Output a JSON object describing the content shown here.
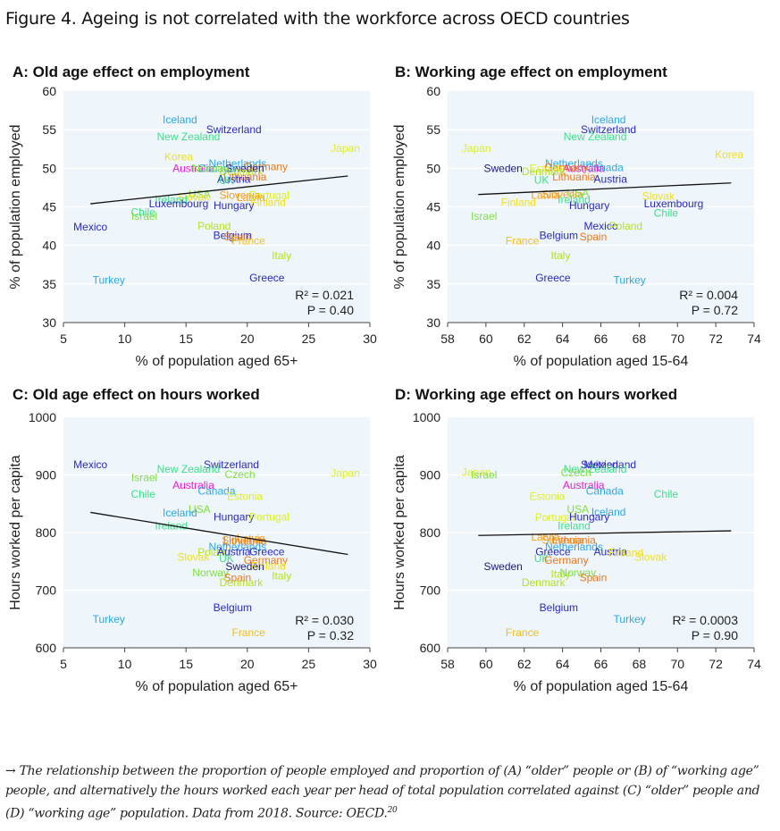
{
  "figure": {
    "title": "Figure 4. Ageing is not correlated with the workforce across OECD countries",
    "caption_arrow": "→",
    "caption": "The relationship between the proportion of people employed and proportion of (A) “older” people or (B) of “working age” people, and alternatively the hours worked each year per head of total population correlated against (C) “older” people and (D) “working age” population. Data from 2018. Source: OECD.",
    "caption_ref": "20"
  },
  "chart_data": [
    {
      "id": "A",
      "type": "scatter",
      "title": "A: Old age effect on employment",
      "xlabel": "% of population aged 65+",
      "ylabel": "% of population employed",
      "xlim": [
        5,
        30
      ],
      "ylim": [
        30,
        60
      ],
      "xticks": [
        5,
        10,
        15,
        20,
        25,
        30
      ],
      "yticks": [
        30,
        35,
        40,
        45,
        50,
        55,
        60
      ],
      "grid": true,
      "r2_label": "R² = 0.021",
      "p_label": "P = 0.40",
      "trendline": {
        "x": [
          7.2,
          28.2
        ],
        "y": [
          45.4,
          49.0
        ]
      },
      "points": [
        {
          "label": "Iceland",
          "x": 14.5,
          "y": 56.3,
          "color": "#2fa8e0"
        },
        {
          "label": "Switzerland",
          "x": 18.9,
          "y": 55.0,
          "color": "#2a2ab8"
        },
        {
          "label": "New Zealand",
          "x": 15.2,
          "y": 54.1,
          "color": "#3fe08a"
        },
        {
          "label": "Japan",
          "x": 28.0,
          "y": 52.6,
          "color": "#e0f020"
        },
        {
          "label": "Korea",
          "x": 14.4,
          "y": 51.5,
          "color": "#f0e020"
        },
        {
          "label": "Netherlands",
          "x": 19.2,
          "y": 50.6,
          "color": "#2fa8e0"
        },
        {
          "label": "Germany",
          "x": 21.5,
          "y": 50.2,
          "color": "#e87a20"
        },
        {
          "label": "Australia",
          "x": 15.6,
          "y": 50.0,
          "color": "#e020d0"
        },
        {
          "label": "Sweden",
          "x": 19.8,
          "y": 50.0,
          "color": "#1a1a7a"
        },
        {
          "label": "Denmark",
          "x": 19.5,
          "y": 49.6,
          "color": "#b8e020"
        },
        {
          "label": "Canada",
          "x": 17.5,
          "y": 50.0,
          "color": "#2fa8e0"
        },
        {
          "label": "Norway",
          "x": 17.0,
          "y": 50.0,
          "color": "#80e040"
        },
        {
          "label": "Lithuania",
          "x": 19.8,
          "y": 48.9,
          "color": "#e87a20"
        },
        {
          "label": "Austria",
          "x": 18.9,
          "y": 48.6,
          "color": "#2a2ab8"
        },
        {
          "label": "UK",
          "x": 18.3,
          "y": 48.4,
          "color": "#3fe08a"
        },
        {
          "label": "USA",
          "x": 16.1,
          "y": 46.6,
          "color": "#80e040"
        },
        {
          "label": "Slovak",
          "x": 15.6,
          "y": 46.3,
          "color": "#f0e020"
        },
        {
          "label": "Ireland",
          "x": 13.8,
          "y": 45.9,
          "color": "#3fe08a"
        },
        {
          "label": "Slovenia",
          "x": 19.4,
          "y": 46.5,
          "color": "#f0a020"
        },
        {
          "label": "Portugal",
          "x": 21.8,
          "y": 46.5,
          "color": "#e0f020"
        },
        {
          "label": "Latvia",
          "x": 20.3,
          "y": 46.2,
          "color": "#f0a020"
        },
        {
          "label": "Luxembourg",
          "x": 14.4,
          "y": 45.4,
          "color": "#2a2ab8"
        },
        {
          "label": "Hungary",
          "x": 18.9,
          "y": 45.2,
          "color": "#2a2ab8"
        },
        {
          "label": "Finland",
          "x": 21.7,
          "y": 45.6,
          "color": "#f0e020"
        },
        {
          "label": "Chile",
          "x": 11.5,
          "y": 44.3,
          "color": "#3fe08a"
        },
        {
          "label": "Israel",
          "x": 11.6,
          "y": 43.8,
          "color": "#80e040"
        },
        {
          "label": "Mexico",
          "x": 7.2,
          "y": 42.4,
          "color": "#2a2ab8"
        },
        {
          "label": "Poland",
          "x": 17.3,
          "y": 42.5,
          "color": "#b8e020"
        },
        {
          "label": "Belgium",
          "x": 18.8,
          "y": 41.3,
          "color": "#2a2ab8"
        },
        {
          "label": "Spain",
          "x": 19.2,
          "y": 41.1,
          "color": "#e87a20"
        },
        {
          "label": "France",
          "x": 20.1,
          "y": 40.6,
          "color": "#f0c020"
        },
        {
          "label": "Italy",
          "x": 22.8,
          "y": 38.7,
          "color": "#b8e020"
        },
        {
          "label": "Turkey",
          "x": 8.7,
          "y": 35.5,
          "color": "#2fa8e0"
        },
        {
          "label": "Greece",
          "x": 21.6,
          "y": 35.8,
          "color": "#2a2ab8"
        }
      ]
    },
    {
      "id": "B",
      "type": "scatter",
      "title": "B: Working age effect on employment",
      "xlabel": "% of population aged 15-64",
      "ylabel": "% of population employed",
      "xlim": [
        58,
        74
      ],
      "ylim": [
        30,
        60
      ],
      "xticks": [
        58,
        60,
        62,
        64,
        66,
        68,
        70,
        72,
        74
      ],
      "yticks": [
        30,
        35,
        40,
        45,
        50,
        55,
        60
      ],
      "grid": true,
      "r2_label": "R² = 0.004",
      "p_label": "P = 0.72",
      "trendline": {
        "x": [
          59.6,
          72.8
        ],
        "y": [
          46.6,
          48.1
        ]
      },
      "points": [
        {
          "label": "Iceland",
          "x": 66.4,
          "y": 56.3,
          "color": "#2fa8e0"
        },
        {
          "label": "Switzerland",
          "x": 66.4,
          "y": 55.0,
          "color": "#2a2ab8"
        },
        {
          "label": "New Zealand",
          "x": 65.7,
          "y": 54.1,
          "color": "#3fe08a"
        },
        {
          "label": "Japan",
          "x": 59.5,
          "y": 52.6,
          "color": "#e0f020"
        },
        {
          "label": "Korea",
          "x": 72.7,
          "y": 51.8,
          "color": "#f0e020"
        },
        {
          "label": "Netherlands",
          "x": 64.6,
          "y": 50.6,
          "color": "#2fa8e0"
        },
        {
          "label": "Canada",
          "x": 66.2,
          "y": 50.1,
          "color": "#2fa8e0"
        },
        {
          "label": "Australia",
          "x": 65.1,
          "y": 50.0,
          "color": "#e020d0"
        },
        {
          "label": "Germany",
          "x": 64.2,
          "y": 50.1,
          "color": "#e87a20"
        },
        {
          "label": "Estonia",
          "x": 63.2,
          "y": 50.0,
          "color": "#e0f020"
        },
        {
          "label": "Sweden",
          "x": 60.9,
          "y": 50.0,
          "color": "#1a1a7a"
        },
        {
          "label": "Denmark",
          "x": 63.0,
          "y": 49.6,
          "color": "#b8e020"
        },
        {
          "label": "UK",
          "x": 62.9,
          "y": 48.5,
          "color": "#3fe08a"
        },
        {
          "label": "Lithuania",
          "x": 64.6,
          "y": 48.9,
          "color": "#e87a20"
        },
        {
          "label": "Austria",
          "x": 66.5,
          "y": 48.6,
          "color": "#2a2ab8"
        },
        {
          "label": "Latvia",
          "x": 63.1,
          "y": 46.5,
          "color": "#f0a020"
        },
        {
          "label": "Slovenia",
          "x": 64.0,
          "y": 46.6,
          "color": "#f0a020"
        },
        {
          "label": "USA",
          "x": 64.8,
          "y": 46.8,
          "color": "#80e040"
        },
        {
          "label": "Slovak",
          "x": 69.0,
          "y": 46.4,
          "color": "#f0e020"
        },
        {
          "label": "Ireland",
          "x": 64.6,
          "y": 45.9,
          "color": "#3fe08a"
        },
        {
          "label": "Finland",
          "x": 61.7,
          "y": 45.6,
          "color": "#f0e020"
        },
        {
          "label": "Hungary",
          "x": 65.4,
          "y": 45.2,
          "color": "#2a2ab8"
        },
        {
          "label": "Luxembourg",
          "x": 69.8,
          "y": 45.4,
          "color": "#2a2ab8"
        },
        {
          "label": "Chile",
          "x": 69.4,
          "y": 44.2,
          "color": "#3fe08a"
        },
        {
          "label": "Israel",
          "x": 59.9,
          "y": 43.8,
          "color": "#80e040"
        },
        {
          "label": "Mexico",
          "x": 66.0,
          "y": 42.5,
          "color": "#2a2ab8"
        },
        {
          "label": "Poland",
          "x": 67.3,
          "y": 42.5,
          "color": "#b8e020"
        },
        {
          "label": "Belgium",
          "x": 63.8,
          "y": 41.3,
          "color": "#2a2ab8"
        },
        {
          "label": "Spain",
          "x": 65.6,
          "y": 41.1,
          "color": "#e87a20"
        },
        {
          "label": "France",
          "x": 61.9,
          "y": 40.6,
          "color": "#f0c020"
        },
        {
          "label": "Italy",
          "x": 63.9,
          "y": 38.7,
          "color": "#b8e020"
        },
        {
          "label": "Greece",
          "x": 63.5,
          "y": 35.8,
          "color": "#2a2ab8"
        },
        {
          "label": "Turkey",
          "x": 67.5,
          "y": 35.5,
          "color": "#2fa8e0"
        }
      ]
    },
    {
      "id": "C",
      "type": "scatter",
      "title": "C: Old age effect on hours worked",
      "xlabel": "% of population aged 65+",
      "ylabel": "Hours worked per capita",
      "xlim": [
        5,
        30
      ],
      "ylim": [
        600,
        1000
      ],
      "xticks": [
        5,
        10,
        15,
        20,
        25,
        30
      ],
      "yticks": [
        600,
        700,
        800,
        900,
        1000
      ],
      "grid": true,
      "r2_label": "R² = 0.030",
      "p_label": "P = 0.32",
      "trendline": {
        "x": [
          7.2,
          28.2
        ],
        "y": [
          835,
          762
        ]
      },
      "points": [
        {
          "label": "Mexico",
          "x": 7.2,
          "y": 918,
          "color": "#2a2ab8"
        },
        {
          "label": "Switzerland",
          "x": 18.7,
          "y": 918,
          "color": "#2a2ab8"
        },
        {
          "label": "New Zealand",
          "x": 15.2,
          "y": 910,
          "color": "#3fe08a"
        },
        {
          "label": "Czech",
          "x": 19.4,
          "y": 901,
          "color": "#80e040"
        },
        {
          "label": "Israel",
          "x": 11.6,
          "y": 895,
          "color": "#80e040"
        },
        {
          "label": "Japan",
          "x": 28.0,
          "y": 903,
          "color": "#e0f020"
        },
        {
          "label": "Australia",
          "x": 15.6,
          "y": 882,
          "color": "#e020d0"
        },
        {
          "label": "Canada",
          "x": 17.5,
          "y": 872,
          "color": "#2fa8e0"
        },
        {
          "label": "Chile",
          "x": 11.5,
          "y": 867,
          "color": "#3fe08a"
        },
        {
          "label": "Estonia",
          "x": 19.8,
          "y": 863,
          "color": "#e0f020"
        },
        {
          "label": "USA",
          "x": 16.1,
          "y": 840,
          "color": "#80e040"
        },
        {
          "label": "Iceland",
          "x": 14.5,
          "y": 834,
          "color": "#2fa8e0"
        },
        {
          "label": "Hungary",
          "x": 18.9,
          "y": 827,
          "color": "#2a2ab8"
        },
        {
          "label": "Portugal",
          "x": 21.8,
          "y": 827,
          "color": "#e0f020"
        },
        {
          "label": "Ireland",
          "x": 13.8,
          "y": 812,
          "color": "#3fe08a"
        },
        {
          "label": "Latvia",
          "x": 20.3,
          "y": 790,
          "color": "#f0a020"
        },
        {
          "label": "Slovenia",
          "x": 19.6,
          "y": 787,
          "color": "#f0a020"
        },
        {
          "label": "Lithuania",
          "x": 19.8,
          "y": 785,
          "color": "#e87a20"
        },
        {
          "label": "Netherlands",
          "x": 19.2,
          "y": 775,
          "color": "#2fa8e0"
        },
        {
          "label": "Poland",
          "x": 17.3,
          "y": 766,
          "color": "#b8e020"
        },
        {
          "label": "Austria",
          "x": 18.9,
          "y": 767,
          "color": "#2a2ab8"
        },
        {
          "label": "Greece",
          "x": 21.6,
          "y": 767,
          "color": "#2a2ab8"
        },
        {
          "label": "Slovak",
          "x": 15.6,
          "y": 757,
          "color": "#f0e020"
        },
        {
          "label": "UK",
          "x": 18.3,
          "y": 755,
          "color": "#3fe08a"
        },
        {
          "label": "Germany",
          "x": 21.5,
          "y": 752,
          "color": "#e87a20"
        },
        {
          "label": "Sweden",
          "x": 19.8,
          "y": 741,
          "color": "#1a1a7a"
        },
        {
          "label": "Finland",
          "x": 21.7,
          "y": 742,
          "color": "#f0e020"
        },
        {
          "label": "Norway",
          "x": 17.0,
          "y": 730,
          "color": "#80e040"
        },
        {
          "label": "Spain",
          "x": 19.2,
          "y": 722,
          "color": "#e87a20"
        },
        {
          "label": "Italy",
          "x": 22.8,
          "y": 725,
          "color": "#b8e020"
        },
        {
          "label": "Denmark",
          "x": 19.5,
          "y": 713,
          "color": "#b8e020"
        },
        {
          "label": "Belgium",
          "x": 18.8,
          "y": 670,
          "color": "#2a2ab8"
        },
        {
          "label": "Turkey",
          "x": 8.7,
          "y": 650,
          "color": "#2fa8e0"
        },
        {
          "label": "France",
          "x": 20.1,
          "y": 626,
          "color": "#f0c020"
        }
      ]
    },
    {
      "id": "D",
      "type": "scatter",
      "title": "D: Working age effect on hours worked",
      "xlabel": "% of population aged 15-64",
      "ylabel": "Hours worked per capita",
      "xlim": [
        58,
        74
      ],
      "ylim": [
        600,
        1000
      ],
      "xticks": [
        58,
        60,
        62,
        64,
        66,
        68,
        70,
        72,
        74
      ],
      "yticks": [
        600,
        700,
        800,
        900,
        1000
      ],
      "grid": true,
      "r2_label": "R² = 0.0003",
      "p_label": "P = 0.90",
      "trendline": {
        "x": [
          59.6,
          72.8
        ],
        "y": [
          795,
          803
        ]
      },
      "points": [
        {
          "label": "Switzerland",
          "x": 66.4,
          "y": 918,
          "color": "#2a2ab8"
        },
        {
          "label": "Mexico",
          "x": 66.0,
          "y": 918,
          "color": "#2a2ab8"
        },
        {
          "label": "New Zealand",
          "x": 65.7,
          "y": 910,
          "color": "#3fe08a"
        },
        {
          "label": "Czech",
          "x": 64.7,
          "y": 904,
          "color": "#80e040"
        },
        {
          "label": "Japan",
          "x": 59.5,
          "y": 905,
          "color": "#e0f020"
        },
        {
          "label": "Israel",
          "x": 59.9,
          "y": 900,
          "color": "#80e040"
        },
        {
          "label": "Australia",
          "x": 65.1,
          "y": 882,
          "color": "#e020d0"
        },
        {
          "label": "Canada",
          "x": 66.2,
          "y": 872,
          "color": "#2fa8e0"
        },
        {
          "label": "Chile",
          "x": 69.4,
          "y": 867,
          "color": "#3fe08a"
        },
        {
          "label": "Estonia",
          "x": 63.2,
          "y": 863,
          "color": "#e0f020"
        },
        {
          "label": "USA",
          "x": 64.8,
          "y": 840,
          "color": "#80e040"
        },
        {
          "label": "Iceland",
          "x": 66.4,
          "y": 836,
          "color": "#2fa8e0"
        },
        {
          "label": "Portugal",
          "x": 63.6,
          "y": 826,
          "color": "#e0f020"
        },
        {
          "label": "Hungary",
          "x": 65.4,
          "y": 827,
          "color": "#2a2ab8"
        },
        {
          "label": "Ireland",
          "x": 64.6,
          "y": 812,
          "color": "#3fe08a"
        },
        {
          "label": "Latvia",
          "x": 63.1,
          "y": 792,
          "color": "#f0a020"
        },
        {
          "label": "Slovenia",
          "x": 64.0,
          "y": 787,
          "color": "#f0a020"
        },
        {
          "label": "Lithuania",
          "x": 64.6,
          "y": 787,
          "color": "#e87a20"
        },
        {
          "label": "Netherlands",
          "x": 64.6,
          "y": 775,
          "color": "#2fa8e0"
        },
        {
          "label": "Greece",
          "x": 63.5,
          "y": 767,
          "color": "#2a2ab8"
        },
        {
          "label": "Austria",
          "x": 66.5,
          "y": 767,
          "color": "#2a2ab8"
        },
        {
          "label": "Finland",
          "x": 67.3,
          "y": 765,
          "color": "#f0e020"
        },
        {
          "label": "Slovak",
          "x": 68.6,
          "y": 757,
          "color": "#f0e020"
        },
        {
          "label": "UK",
          "x": 62.9,
          "y": 755,
          "color": "#3fe08a"
        },
        {
          "label": "Germany",
          "x": 64.2,
          "y": 752,
          "color": "#e87a20"
        },
        {
          "label": "Sweden",
          "x": 60.9,
          "y": 741,
          "color": "#1a1a7a"
        },
        {
          "label": "Italy",
          "x": 63.9,
          "y": 728,
          "color": "#b8e020"
        },
        {
          "label": "Norway",
          "x": 64.8,
          "y": 730,
          "color": "#80e040"
        },
        {
          "label": "Spain",
          "x": 65.6,
          "y": 722,
          "color": "#e87a20"
        },
        {
          "label": "Denmark",
          "x": 63.0,
          "y": 713,
          "color": "#b8e020"
        },
        {
          "label": "Belgium",
          "x": 63.8,
          "y": 670,
          "color": "#2a2ab8"
        },
        {
          "label": "Turkey",
          "x": 67.5,
          "y": 650,
          "color": "#2fa8e0"
        },
        {
          "label": "France",
          "x": 61.9,
          "y": 626,
          "color": "#f0c020"
        }
      ]
    }
  ]
}
